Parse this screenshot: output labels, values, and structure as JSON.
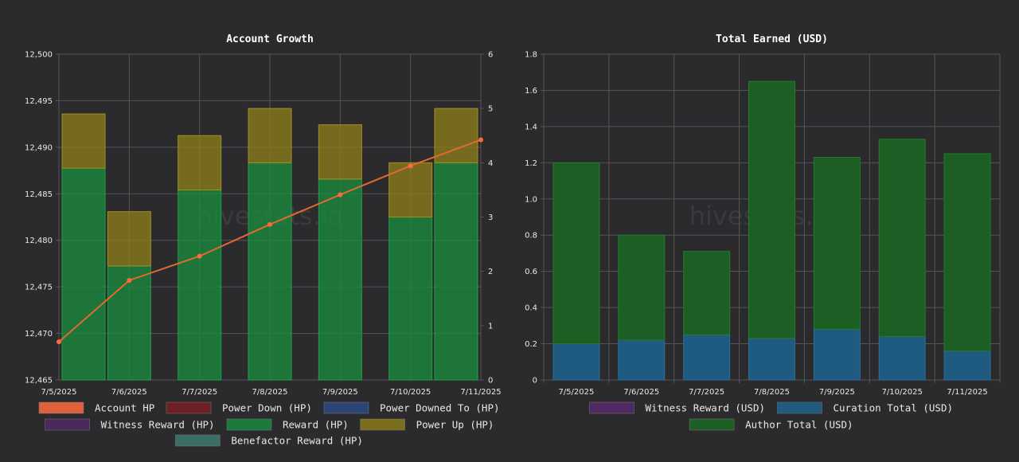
{
  "chart_data": [
    {
      "type": "bar",
      "title": "Account Growth",
      "watermark": "hivestats.io",
      "stacked": true,
      "categories": [
        "7/5/2025",
        "7/6/2025",
        "7/7/2025",
        "7/8/2025",
        "7/9/2025",
        "7/10/2025",
        "7/11/2025"
      ],
      "ylim": [
        12465,
        12500
      ],
      "yticks": [
        "12,500",
        "12,495",
        "12,490",
        "12,485",
        "12,480",
        "12,475",
        "12,470",
        "12,465"
      ],
      "ytick_values": [
        12500,
        12495,
        12490,
        12485,
        12480,
        12475,
        12470,
        12465
      ],
      "y2lim": [
        0,
        6
      ],
      "y2ticks": [
        "6",
        "5",
        "4",
        "3",
        "2",
        "1",
        "0"
      ],
      "y2tick_values": [
        6,
        5,
        4,
        3,
        2,
        1,
        0
      ],
      "series": [
        {
          "name": "Account HP",
          "type": "line",
          "axis": "y",
          "color": "#ff6a3d",
          "values": [
            12469.1,
            12475.7,
            12478.3,
            12481.7,
            12484.9,
            12488.0,
            12490.8
          ]
        },
        {
          "name": "Power Down (HP)",
          "type": "bar",
          "color": "#7a1f22",
          "values": [
            0,
            0,
            0,
            0,
            0,
            0,
            0
          ]
        },
        {
          "name": "Power Downed To (HP)",
          "type": "bar",
          "color": "#2c4a82",
          "values": [
            0,
            0,
            0,
            0,
            0,
            0,
            0
          ]
        },
        {
          "name": "Witness Reward (HP)",
          "type": "bar",
          "color": "#4f2a62",
          "values": [
            0,
            0,
            0,
            0,
            0,
            0,
            0
          ]
        },
        {
          "name": "Reward (HP)",
          "type": "bar",
          "axis": "y2",
          "color": "#1a8a3c",
          "values": [
            3.9,
            2.1,
            3.5,
            4.0,
            3.7,
            3.0,
            4.0
          ]
        },
        {
          "name": "Power Up (HP)",
          "type": "bar",
          "axis": "y2",
          "color": "#8a7a1a",
          "values": [
            1.0,
            1.0,
            1.0,
            1.0,
            1.0,
            1.0,
            1.0
          ]
        },
        {
          "name": "Benefactor Reward (HP)",
          "type": "bar",
          "color": "#3f7870",
          "values": [
            0,
            0,
            0,
            0,
            0,
            0,
            0
          ]
        }
      ],
      "legend_placement": "bottom"
    },
    {
      "type": "bar",
      "title": "Total Earned (USD)",
      "watermark": "hivestats.io",
      "stacked": true,
      "categories": [
        "7/5/2025",
        "7/6/2025",
        "7/7/2025",
        "7/8/2025",
        "7/9/2025",
        "7/10/2025",
        "7/11/2025"
      ],
      "ylim": [
        0,
        1.8
      ],
      "yticks": [
        "1.8",
        "1.6",
        "1.4",
        "1.2",
        "1.0",
        "0.8",
        "0.6",
        "0.4",
        "0.2",
        "0"
      ],
      "ytick_values": [
        1.8,
        1.6,
        1.4,
        1.2,
        1.0,
        0.8,
        0.6,
        0.4,
        0.2,
        0
      ],
      "series": [
        {
          "name": "Witness Reward (USD)",
          "color": "#4f2a62",
          "values": [
            0,
            0,
            0,
            0,
            0,
            0,
            0
          ]
        },
        {
          "name": "Curation Total (USD)",
          "color": "#1f5a80",
          "values": [
            0.2,
            0.22,
            0.25,
            0.23,
            0.28,
            0.24,
            0.16
          ]
        },
        {
          "name": "Author Total (USD)",
          "color": "#1c5e23",
          "values": [
            1.0,
            0.58,
            0.46,
            1.42,
            0.95,
            1.09,
            1.09
          ]
        }
      ],
      "legend_placement": "bottom"
    }
  ]
}
